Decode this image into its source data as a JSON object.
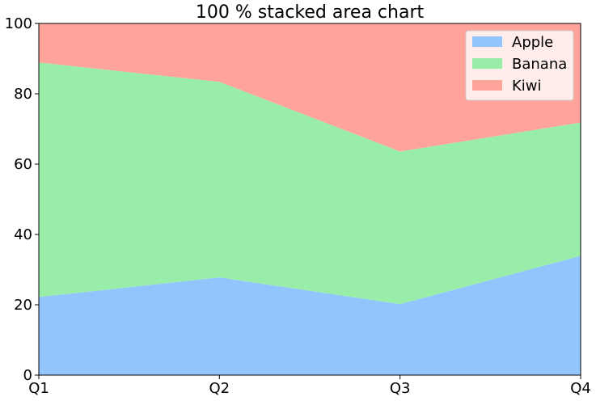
{
  "chart_data": {
    "type": "area",
    "stacked": "percent",
    "title": "100 % stacked area chart",
    "xlabel": "",
    "ylabel": "",
    "categories": [
      "Q1",
      "Q2",
      "Q3",
      "Q4"
    ],
    "ylim": [
      0,
      100
    ],
    "yticks": [
      "0",
      "20",
      "40",
      "60",
      "80",
      "100"
    ],
    "grid": false,
    "legend": "top-right",
    "series": [
      {
        "name": "Apple",
        "color": "#92c5fd",
        "values": [
          22.2,
          27.8,
          20.2,
          33.9
        ]
      },
      {
        "name": "Banana",
        "color": "#98eea9",
        "values": [
          66.7,
          55.6,
          43.4,
          37.9
        ]
      },
      {
        "name": "Kiwi",
        "color": "#ffa39b",
        "values": [
          11.1,
          16.6,
          36.4,
          28.2
        ]
      }
    ]
  }
}
